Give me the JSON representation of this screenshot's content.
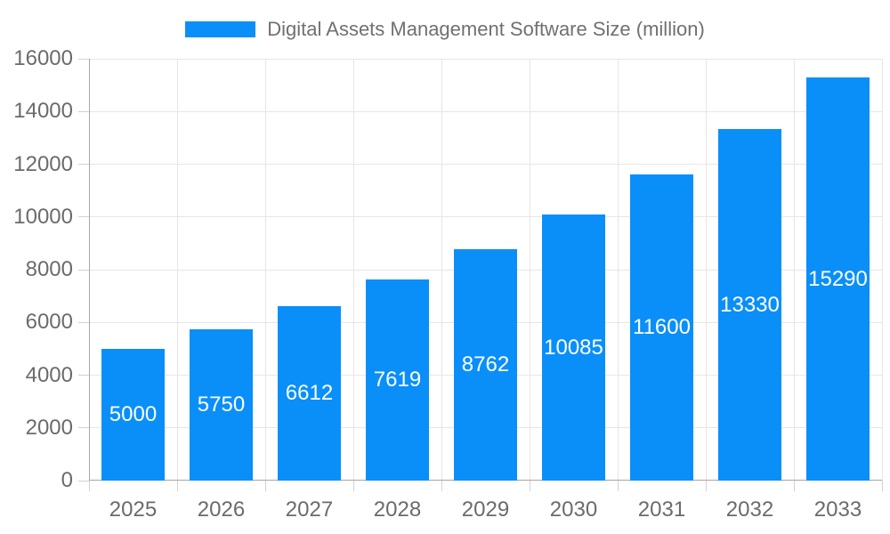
{
  "legend": {
    "label": "Digital Assets Management Software Size (million)"
  },
  "chart_data": {
    "type": "bar",
    "title": "Digital Assets Management Software Size (million)",
    "categories": [
      "2025",
      "2026",
      "2027",
      "2028",
      "2029",
      "2030",
      "2031",
      "2032",
      "2033"
    ],
    "values": [
      5000,
      5750,
      6612,
      7619,
      8762,
      10085,
      11600,
      13330,
      15290
    ],
    "series_name": "Digital Assets Management Software Size (million)",
    "xlabel": "",
    "ylabel": "",
    "ylim": [
      0,
      16000
    ],
    "ytick_step": 2000,
    "yticks": [
      0,
      2000,
      4000,
      6000,
      8000,
      10000,
      12000,
      14000,
      16000
    ],
    "grid": true,
    "legend_position": "top",
    "value_labels": "inside-center"
  },
  "colors": {
    "bar": "#0a8ff9",
    "value_label": "#ffffff",
    "axis_line": "#a6a6a6",
    "gridline": "#e6e6e6",
    "tick": "#d2d2d2",
    "axis_text": "#6b6b6b",
    "legend_text": "#707070",
    "background": "#ffffff"
  }
}
